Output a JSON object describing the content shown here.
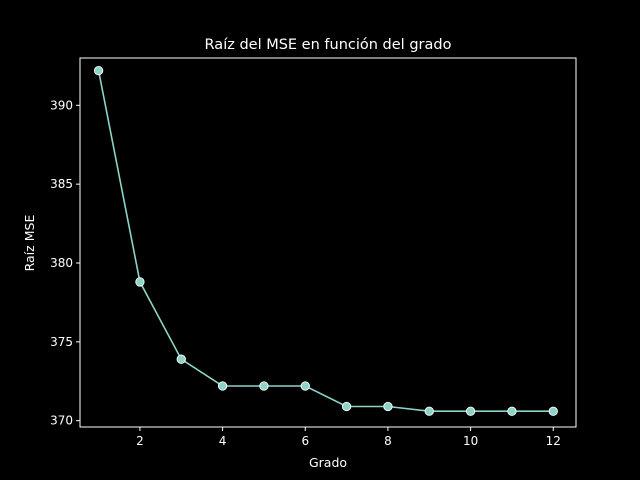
{
  "chart_data": {
    "type": "line",
    "title": "Raíz del MSE en función del grado",
    "xlabel": "Grado",
    "ylabel": "Raíz MSE",
    "xlim": [
      0.55,
      12.55
    ],
    "ylim": [
      369.6,
      393.0
    ],
    "xticks": [
      2,
      4,
      6,
      8,
      10,
      12
    ],
    "yticks": [
      370,
      375,
      380,
      385,
      390
    ],
    "grid": false,
    "legend": "none",
    "series": [
      {
        "x": [
          1,
          2,
          3,
          4,
          5,
          6,
          7,
          8,
          9,
          10,
          11,
          12
        ],
        "values": [
          392.2,
          378.8,
          373.9,
          372.2,
          372.2,
          372.2,
          370.9,
          370.9,
          370.6,
          370.6,
          370.6,
          370.6
        ],
        "color": "#8dd3c7",
        "marker": "circle"
      }
    ],
    "colors": {
      "background": "#000000",
      "axes": "#ffffff",
      "line": "#8dd3c7",
      "marker_edge": "#ffffff"
    }
  }
}
